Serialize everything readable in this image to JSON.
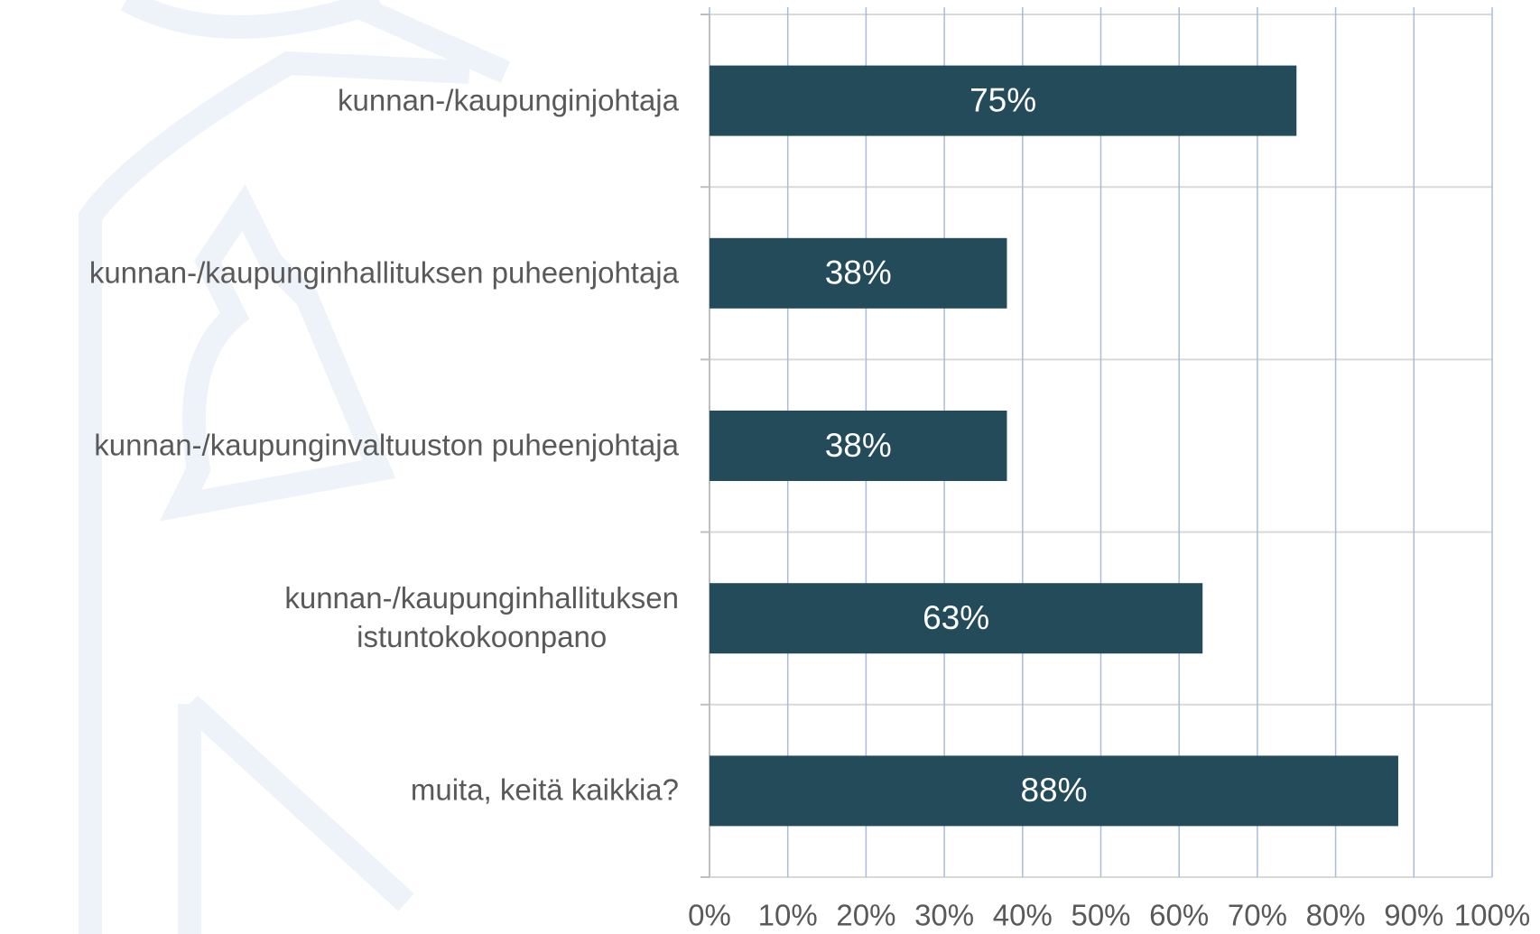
{
  "chart_data": {
    "type": "hbar",
    "categories": [
      "kunnan-/kaupunginjohtaja",
      "kunnan-/kaupunginhallituksen puheenjohtaja",
      "kunnan-/kaupunginvaltuuston puheenjohtaja",
      "kunnan-/kaupunginhallituksen\nistuntokokoonpano",
      "muita, keitä kaikkia?"
    ],
    "values": [
      75,
      38,
      38,
      63,
      88
    ],
    "value_labels": [
      "75%",
      "38%",
      "38%",
      "63%",
      "88%"
    ],
    "color": "#234b5a",
    "xlim": [
      0,
      100
    ],
    "xticks": [
      {
        "value": 0,
        "label": "0%"
      },
      {
        "value": 10,
        "label": "10%"
      },
      {
        "value": 20,
        "label": "20%"
      },
      {
        "value": 30,
        "label": "30%"
      },
      {
        "value": 40,
        "label": "40%"
      },
      {
        "value": 50,
        "label": "50%"
      },
      {
        "value": 60,
        "label": "60%"
      },
      {
        "value": 70,
        "label": "70%"
      },
      {
        "value": 80,
        "label": "80%"
      },
      {
        "value": 90,
        "label": "90%"
      },
      {
        "value": 100,
        "label": "100%"
      }
    ],
    "grid": true
  }
}
